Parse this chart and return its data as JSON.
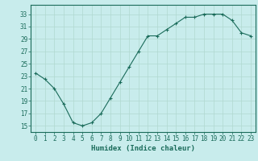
{
  "x": [
    0,
    1,
    2,
    3,
    4,
    5,
    6,
    7,
    8,
    9,
    10,
    11,
    12,
    13,
    14,
    15,
    16,
    17,
    18,
    19,
    20,
    21,
    22,
    23
  ],
  "y": [
    23.5,
    22.5,
    21.0,
    18.5,
    15.5,
    15.0,
    15.5,
    17.0,
    19.5,
    22.0,
    24.5,
    27.0,
    29.5,
    29.5,
    30.5,
    31.5,
    32.5,
    32.5,
    33.0,
    33.0,
    33.0,
    32.0,
    30.0,
    29.5
  ],
  "line_color": "#1a6b5a",
  "bg_color": "#c8ecec",
  "grid_color": "#b0d8d0",
  "xlabel": "Humidex (Indice chaleur)",
  "xlim": [
    -0.5,
    23.5
  ],
  "ylim": [
    14,
    34.5
  ],
  "yticks": [
    15,
    17,
    19,
    21,
    23,
    25,
    27,
    29,
    31,
    33
  ],
  "xticks": [
    0,
    1,
    2,
    3,
    4,
    5,
    6,
    7,
    8,
    9,
    10,
    11,
    12,
    13,
    14,
    15,
    16,
    17,
    18,
    19,
    20,
    21,
    22,
    23
  ],
  "tick_fontsize": 5.5,
  "xlabel_fontsize": 6.5
}
